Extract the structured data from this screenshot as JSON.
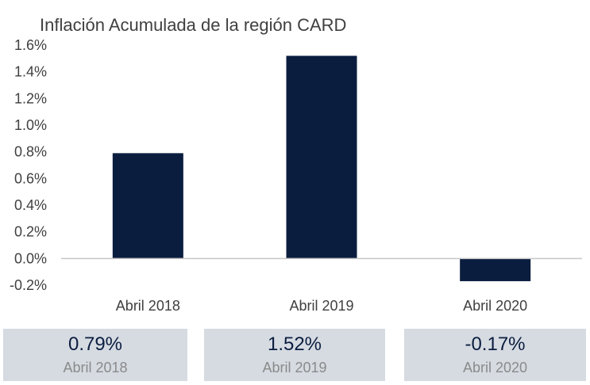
{
  "chart_data": {
    "type": "bar",
    "title": "Inflación Acumulada de la región CARD",
    "categories": [
      "Abril 2018",
      "Abril 2019",
      "Abril 2020"
    ],
    "values": [
      0.79,
      1.52,
      -0.17
    ],
    "ylim": [
      -0.2,
      1.6
    ],
    "yticks": [
      1.6,
      1.4,
      1.2,
      1.0,
      0.8,
      0.6,
      0.4,
      0.2,
      0.0,
      -0.2
    ],
    "ytick_labels": [
      "1.6%",
      "1.4%",
      "1.2%",
      "1.0%",
      "0.8%",
      "0.6%",
      "0.4%",
      "0.2%",
      "0.0%",
      "-0.2%"
    ],
    "bar_color": "#0b1d3f",
    "grid": false,
    "legend": "none"
  },
  "cards": [
    {
      "value": "0.79%",
      "label": "Abril 2018"
    },
    {
      "value": "1.52%",
      "label": "Abril 2019"
    },
    {
      "value": "-0.17%",
      "label": "Abril 2020"
    }
  ],
  "colors": {
    "bar": "#0b1d3f",
    "card_bg": "#d6dbe2",
    "text": "#404040",
    "muted": "#8a8a8a"
  }
}
